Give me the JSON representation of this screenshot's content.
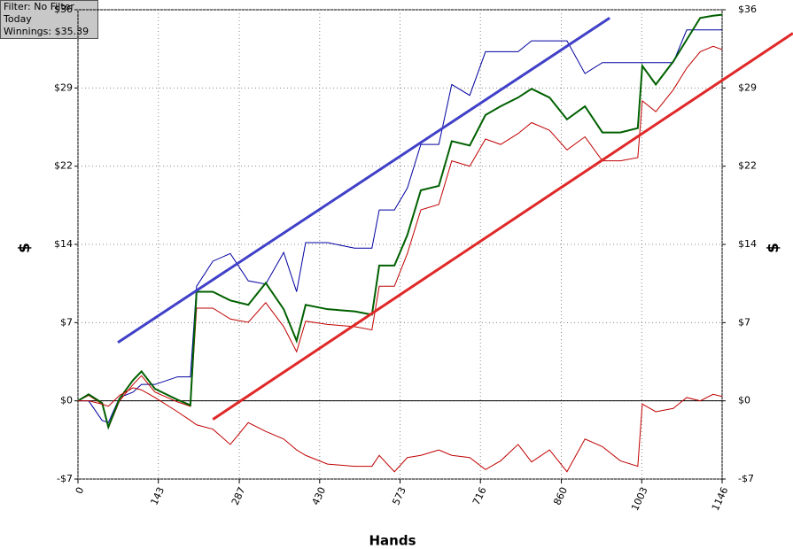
{
  "info": [
    "Filter: No Filter",
    "Today",
    "Winnings: $35.39"
  ],
  "chart_data": {
    "type": "line",
    "xlabel": "Hands",
    "ylabel": "$",
    "y2label": "$",
    "xlim": [
      0,
      1146
    ],
    "xticks": [
      0,
      143,
      287,
      430,
      573,
      716,
      860,
      1003,
      1146
    ],
    "ylim": [
      -7.17,
      35.85
    ],
    "yticks": [
      {
        "value": -7.17,
        "label": "-$7"
      },
      {
        "value": 0,
        "label": "$0"
      },
      {
        "value": 7.17,
        "label": "$7"
      },
      {
        "value": 14.34,
        "label": "$14"
      },
      {
        "value": 21.51,
        "label": "$22"
      },
      {
        "value": 28.68,
        "label": "$29"
      },
      {
        "value": 35.85,
        "label": "$36"
      }
    ],
    "y2lim": [
      -7.17,
      35.85
    ],
    "y2ticks": [
      {
        "value": -7.17,
        "label": "-$7"
      },
      {
        "value": 0,
        "label": "$0"
      },
      {
        "value": 7.17,
        "label": "$7"
      },
      {
        "value": 14.34,
        "label": "$14"
      },
      {
        "value": 21.51,
        "label": "$22"
      },
      {
        "value": 28.68,
        "label": "$29"
      },
      {
        "value": 35.85,
        "label": "$36"
      }
    ],
    "grid": true,
    "zero_line": true,
    "x": [
      0,
      19,
      43,
      54,
      74,
      98,
      113,
      137,
      177,
      200,
      211,
      240,
      271,
      303,
      334,
      366,
      389,
      405,
      444,
      492,
      523,
      536,
      563,
      586,
      610,
      642,
      665,
      697,
      725,
      752,
      783,
      807,
      839,
      870,
      902,
      933,
      965,
      996,
      1004,
      1028,
      1059,
      1083,
      1107,
      1130,
      1146
    ],
    "series": [
      {
        "color": "#0000a0",
        "width": 1,
        "values": [
          0,
          0,
          -1.8,
          -2,
          0.3,
          0.8,
          1.5,
          1.5,
          2.2,
          2.2,
          10.5,
          12.8,
          13.5,
          11,
          10.7,
          13.6,
          10,
          14.5,
          14.5,
          14,
          14,
          17.5,
          17.5,
          19.5,
          23.5,
          23.5,
          29,
          28,
          32,
          32,
          32,
          33,
          33,
          33,
          30,
          31,
          31,
          31,
          31,
          31,
          31,
          34,
          34,
          34,
          34
        ]
      },
      {
        "color": "#c00000",
        "width": 1,
        "values": [
          0,
          0.5,
          -0.3,
          -2.5,
          0,
          1.5,
          2.3,
          0.8,
          -0.1,
          -0.5,
          8.5,
          8.5,
          7.5,
          7.2,
          9,
          6.8,
          4.5,
          7.3,
          7,
          6.8,
          6.5,
          10.5,
          10.5,
          13.5,
          17.5,
          18,
          22,
          21.5,
          24,
          23.5,
          24.5,
          25.5,
          24.8,
          23,
          24.2,
          22,
          22,
          22.3,
          27.5,
          26.5,
          28.5,
          30.5,
          32,
          32.5,
          32.2
        ]
      },
      {
        "color": "#006000",
        "width": 2,
        "values": [
          0,
          0.6,
          -0.2,
          -2.4,
          0.2,
          1.9,
          2.7,
          1.1,
          0.1,
          -0.4,
          10,
          10,
          9.2,
          8.8,
          10.8,
          8.4,
          5.5,
          8.8,
          8.4,
          8.2,
          7.9,
          12.4,
          12.4,
          15.2,
          19.3,
          19.7,
          23.8,
          23.4,
          26.2,
          27,
          27.8,
          28.6,
          27.8,
          25.8,
          27,
          24.6,
          24.6,
          25,
          30.7,
          29,
          31.1,
          33.1,
          35.1,
          35.3,
          35.39
        ]
      },
      {
        "color": "#c00000",
        "width": 1,
        "values": [
          0,
          0,
          -0.3,
          -0.5,
          0.5,
          1.2,
          1,
          0.3,
          -1,
          -1.8,
          -2.2,
          -2.6,
          -4,
          -2,
          -2.8,
          -3.5,
          -4.5,
          -5,
          -5.8,
          -6,
          -6,
          -5,
          -6.5,
          -5.2,
          -5,
          -4.5,
          -5,
          -5.2,
          -6.3,
          -5.5,
          -4,
          -5.6,
          -4.5,
          -6.5,
          -3.5,
          -4.2,
          -5.5,
          -6,
          -0.3,
          -1,
          -0.7,
          0.3,
          0,
          0.6,
          0.4
        ]
      }
    ],
    "trendlines": [
      {
        "color": "#4040c8",
        "x": [
          71,
          946
        ],
        "values": [
          5.35,
          35.1
        ]
      },
      {
        "color": "#e02828",
        "x": [
          240,
          1272
        ],
        "values": [
          -1.7,
          33.7
        ]
      }
    ]
  }
}
